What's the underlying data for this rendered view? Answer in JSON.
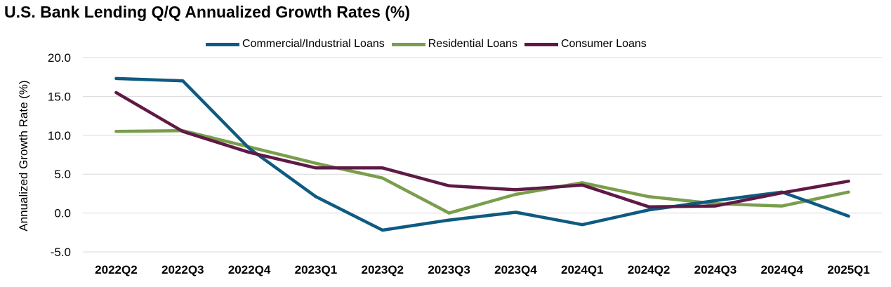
{
  "chart_data": {
    "type": "line",
    "title": "U.S. Bank Lending Q/Q Annualized Growth Rates (%)",
    "xlabel": "",
    "ylabel": "Annualized Growth Rate (%)",
    "categories": [
      "2022Q2",
      "2022Q3",
      "2022Q4",
      "2023Q1",
      "2023Q2",
      "2023Q3",
      "2023Q4",
      "2024Q1",
      "2024Q2",
      "2024Q3",
      "2024Q4",
      "2025Q1"
    ],
    "ylim": [
      -5.0,
      20.0
    ],
    "yticks": [
      "20.0",
      "15.0",
      "10.0",
      "5.0",
      "0.0",
      "-5.0"
    ],
    "grid": true,
    "legend_position": "top",
    "series": [
      {
        "name": "Commercial/Industrial Loans",
        "color": "#0f5a80",
        "values": [
          17.3,
          17.0,
          8.3,
          2.1,
          -2.2,
          -0.9,
          0.1,
          -1.5,
          0.4,
          1.6,
          2.7,
          -0.4
        ]
      },
      {
        "name": "Residential Loans",
        "color": "#7a9e4c",
        "values": [
          10.5,
          10.6,
          8.5,
          6.4,
          4.5,
          0.0,
          2.4,
          3.9,
          2.1,
          1.2,
          0.9,
          2.7
        ]
      },
      {
        "name": "Consumer Loans",
        "color": "#5e1a45",
        "values": [
          15.5,
          10.5,
          7.8,
          5.8,
          5.8,
          3.5,
          3.0,
          3.6,
          0.8,
          0.9,
          2.6,
          4.1
        ]
      }
    ]
  }
}
